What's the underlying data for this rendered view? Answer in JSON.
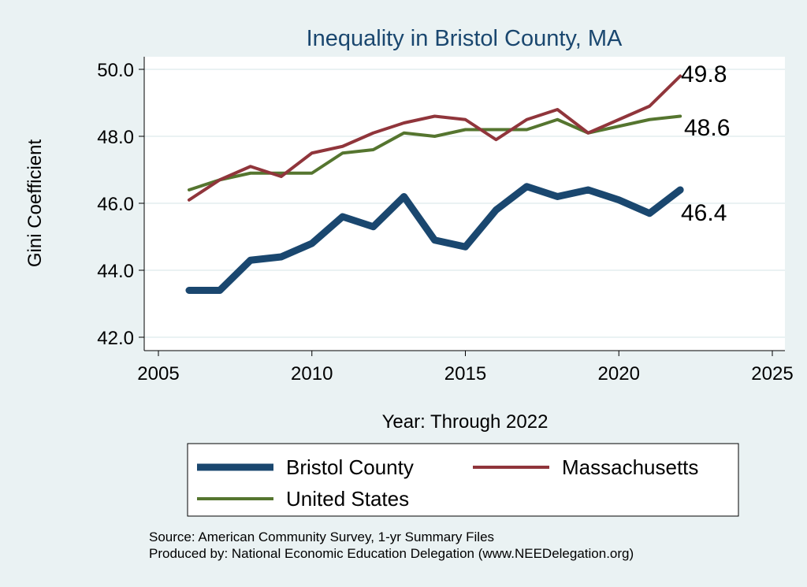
{
  "chart_data": {
    "type": "line",
    "title": "Inequality in Bristol County, MA",
    "xlabel": "Year: Through 2022",
    "ylabel": "Gini Coefficient",
    "xlim": [
      2005,
      2025
    ],
    "ylim": [
      42,
      50
    ],
    "xticks": [
      "2005",
      "2010",
      "2015",
      "2020",
      "2025"
    ],
    "yticks": [
      "42.0",
      "44.0",
      "46.0",
      "48.0",
      "50.0"
    ],
    "grid": true,
    "legend_position": "bottom",
    "x": [
      2006,
      2007,
      2008,
      2009,
      2010,
      2011,
      2012,
      2013,
      2014,
      2015,
      2016,
      2017,
      2018,
      2019,
      2020,
      2021,
      2022
    ],
    "series": [
      {
        "name": "Bristol County",
        "color": "#1a476f",
        "width": 9,
        "values": [
          43.4,
          43.4,
          44.3,
          44.4,
          44.8,
          45.6,
          45.3,
          46.2,
          44.9,
          44.7,
          45.8,
          46.5,
          46.2,
          46.4,
          46.1,
          45.7,
          46.4
        ],
        "end_label": "46.4"
      },
      {
        "name": "Massachusetts",
        "color": "#90353b",
        "width": 4,
        "values": [
          46.1,
          46.7,
          47.1,
          46.8,
          47.5,
          47.7,
          48.1,
          48.4,
          48.6,
          48.5,
          47.9,
          48.5,
          48.8,
          48.1,
          48.5,
          48.9,
          49.8
        ],
        "end_label": "49.8"
      },
      {
        "name": "United States",
        "color": "#55752f",
        "width": 4,
        "values": [
          46.4,
          46.7,
          46.9,
          46.9,
          46.9,
          47.5,
          47.6,
          48.1,
          48.0,
          48.2,
          48.2,
          48.2,
          48.5,
          48.1,
          48.3,
          48.5,
          48.6
        ],
        "end_label": "48.6"
      }
    ],
    "notes": [
      "Source: American Community Survey, 1-yr Summary Files",
      "Produced by: National Economic Education Delegation (www.NEEDelegation.org)"
    ]
  }
}
